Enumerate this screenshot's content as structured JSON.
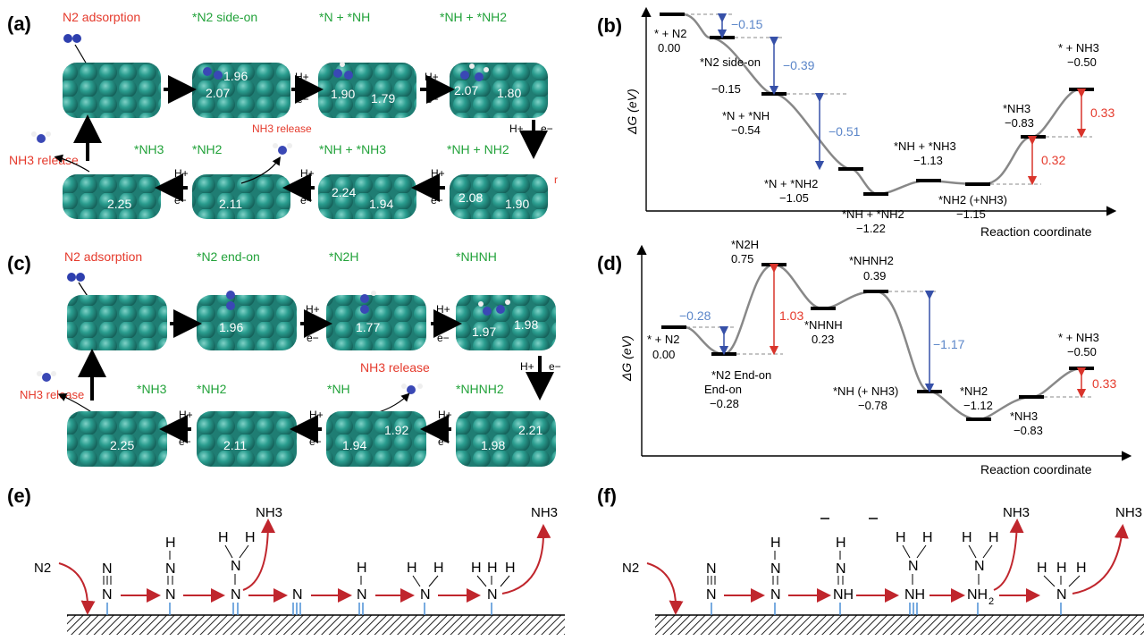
{
  "panel_a": {
    "label": "(a)",
    "top_titles": [
      "N2 adsorption",
      "*N2 side-on",
      "*N + *NH",
      "*NH + *NH2"
    ],
    "bottom_titles": [
      "*NH3",
      "*NH2",
      "*NH + *NH3",
      "*NH + NH2"
    ],
    "nh3_release_a": "NH3 release",
    "nh3_release_b": "NH3 release",
    "hplus": "H+",
    "eminus": "e−",
    "stray_r": "r",
    "dist": {
      "t2a": "1.96",
      "t2b": "2.07",
      "t3a": "1.90",
      "t3b": "1.79",
      "t4a": "2.07",
      "t4b": "1.80",
      "b1": "2.25",
      "b2": "2.11",
      "b3a": "2.24",
      "b3b": "1.94",
      "b4a": "2.08",
      "b4b": "1.90"
    }
  },
  "panel_c": {
    "label": "(c)",
    "top_titles": [
      "N2 adsorption",
      "*N2 end-on",
      "*N2H",
      "*NHNH"
    ],
    "bottom_titles": [
      "*NH3",
      "*NH2",
      "*NH",
      "*NHNH2"
    ],
    "nh3_release_a": "NH3 release",
    "nh3_release_b": "NH3 release",
    "hplus": "H+",
    "eminus": "e−",
    "dist": {
      "t2": "1.96",
      "t3": "1.77",
      "t4a": "1.97",
      "t4b": "1.98",
      "b1": "2.25",
      "b2": "2.11",
      "b3a": "1.94",
      "b3b": "1.92",
      "b4a": "1.98",
      "b4b": "2.21"
    }
  },
  "panel_b": {
    "label": "(b)",
    "ylabel": "ΔG (eV)",
    "xlabel": "Reaction coordinate",
    "states": [
      {
        "name": "* + N2",
        "value": "0.00"
      },
      {
        "name": "*N2 side-on",
        "value": "−0.15"
      },
      {
        "name": "*N + *NH",
        "value": "−0.54"
      },
      {
        "name": "*N + *NH2",
        "value": "−1.05"
      },
      {
        "name": "*NH + *NH2",
        "value": "−1.22"
      },
      {
        "name": "*NH + *NH3",
        "value": "−1.13"
      },
      {
        "name": "*NH2 (+NH3)",
        "value": "−1.15"
      },
      {
        "name": "*NH3",
        "value": "−0.83"
      },
      {
        "name": "* + NH3",
        "value": "−0.50"
      }
    ],
    "deltas": [
      "−0.15",
      "−0.39",
      "−0.51",
      "0.32",
      "0.33"
    ]
  },
  "panel_d": {
    "label": "(d)",
    "ylabel": "ΔG (eV)",
    "xlabel": "Reaction coordinate",
    "states": [
      {
        "name": "* + N2",
        "value": "0.00"
      },
      {
        "name": "*N2 End-on",
        "value": "−0.28"
      },
      {
        "name": "*N2H",
        "value": "0.75"
      },
      {
        "name": "*NHNH",
        "value": "0.23"
      },
      {
        "name": "*NHNH2",
        "value": "0.39"
      },
      {
        "name": "*NH (+ NH3)",
        "value": "−0.78"
      },
      {
        "name": "*NH2",
        "value": "−1.12"
      },
      {
        "name": "*NH3",
        "value": "−0.83"
      },
      {
        "name": "* + NH3",
        "value": "−0.50"
      }
    ],
    "deltas": [
      "−0.28",
      "1.03",
      "−1.17",
      "0.33"
    ]
  },
  "panel_e": {
    "label": "(e)",
    "n2": "N2",
    "nh3_a": "NH3",
    "nh3_b": "NH3"
  },
  "panel_f": {
    "label": "(f)",
    "n2": "N2",
    "nh3_a": "NH3",
    "nh3_b": "NH3"
  },
  "colors": {
    "surface": "#2a9d8f",
    "arrow_red": "#c0262d",
    "delta_blue": "#5b86c9",
    "delta_red": "#e53a2c",
    "label_green": "#22a23a"
  }
}
